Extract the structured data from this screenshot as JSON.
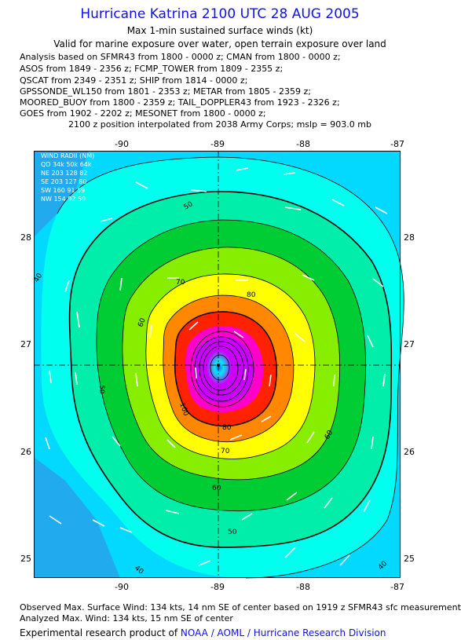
{
  "header": {
    "title": "Hurricane Katrina 2100 UTC 28 AUG 2005",
    "subtitle1": "Max 1-min sustained surface winds (kt)",
    "subtitle2": "Valid for marine exposure over water, open terrain exposure over land",
    "analysis_lines": [
      "Analysis based on  SFMR43 from 1800 - 0000 z;  CMAN from 1800 - 0000 z;",
      "ASOS from 1849 - 2356 z;  FCMP_TOWER from 1809 - 2355 z;",
      "QSCAT from 2349 - 2351 z;  SHIP from 1814 - 0000 z;",
      "GPSSONDE_WL150 from 1801 - 2353 z;  METAR from 1805 - 2359 z;",
      "MOORED_BUOY from 1800 - 2359 z;  TAIL_DOPPLER43 from 1923 - 2326 z;",
      "GOES from 1902 - 2202 z;  MESONET from 1800 - 0000 z;"
    ],
    "position_note": "2100 z position interpolated from 2038 Army Corps; mslp = 903.0 mb"
  },
  "map": {
    "lon_labels": [
      "-90",
      "-89",
      "-88",
      "-87"
    ],
    "lat_labels": [
      "28",
      "27",
      "26",
      "25"
    ],
    "lon_range": [
      -90.97,
      -86.97
    ],
    "lat_range": [
      24.8,
      28.8
    ],
    "center": {
      "lon": -88.97,
      "lat": 26.8
    },
    "contour_labels": [
      "40",
      "50",
      "60",
      "70",
      "80",
      "100",
      "50",
      "60",
      "70",
      "80",
      "50",
      "60",
      "40",
      "40"
    ],
    "legend": {
      "title": "WIND RADII (NM)",
      "header": "QD  34k  50k  64k",
      "rows": [
        "NE 203  128   82",
        "SE 203  127   80",
        "SW 160   91   59",
        "NW 154   92   59"
      ]
    },
    "colors": {
      "outer": "#22bbee",
      "cyan": "#00ffee",
      "teal": "#00eeaa",
      "green": "#00cc33",
      "lime": "#88ee00",
      "yellow": "#ffff00",
      "orange": "#ff8800",
      "red": "#ff2200",
      "magenta": "#ff00cc",
      "purple": "#cc00ff"
    }
  },
  "footer": {
    "observed": "Observed Max. Surface Wind: 134 kts, 14 nm SE of center based on 1919 z SFMR43 sfc measurement",
    "analyzed": "Analyzed Max. Wind: 134 kts, 15 nm SE of center",
    "credit_prefix": "Experimental research product of ",
    "credit_org": "NOAA / AOML / Hurricane Research Division"
  }
}
